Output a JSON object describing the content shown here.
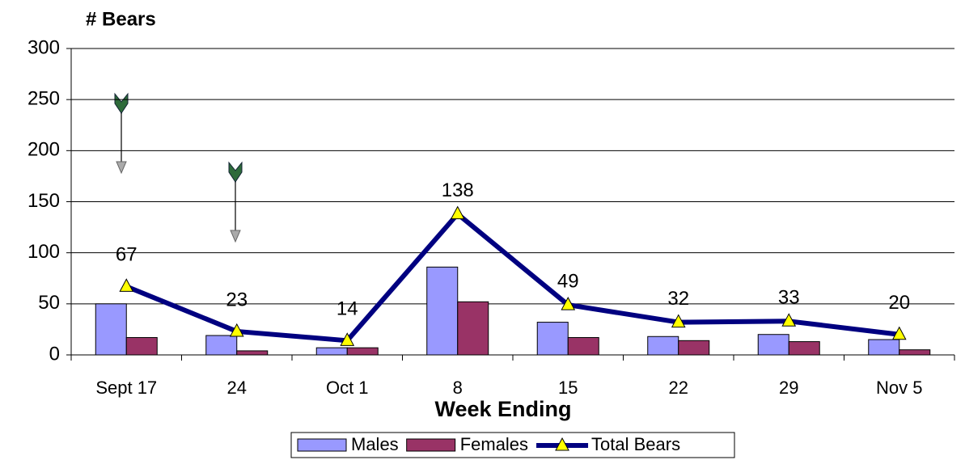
{
  "chart_data": {
    "type": "bar-line",
    "y_label": "# Bears",
    "x_label": "Week Ending",
    "categories": [
      "Sept 17",
      "24",
      "Oct 1",
      "8",
      "15",
      "22",
      "29",
      "Nov 5"
    ],
    "series": [
      {
        "name": "Males",
        "type": "bar",
        "color": "#9999ff",
        "values": [
          50,
          19,
          7,
          86,
          32,
          18,
          20,
          15
        ]
      },
      {
        "name": "Females",
        "type": "bar",
        "color": "#993366",
        "values": [
          17,
          4,
          7,
          52,
          17,
          14,
          13,
          5
        ]
      },
      {
        "name": "Total Bears",
        "type": "line",
        "color": "#000080",
        "marker_color": "#ffff00",
        "values": [
          67,
          23,
          14,
          138,
          49,
          32,
          33,
          20
        ],
        "data_labels": true
      }
    ],
    "ylim": [
      0,
      300
    ],
    "yticks": [
      0,
      50,
      100,
      150,
      200,
      250,
      300
    ],
    "grid": true,
    "legend": "bottom"
  }
}
